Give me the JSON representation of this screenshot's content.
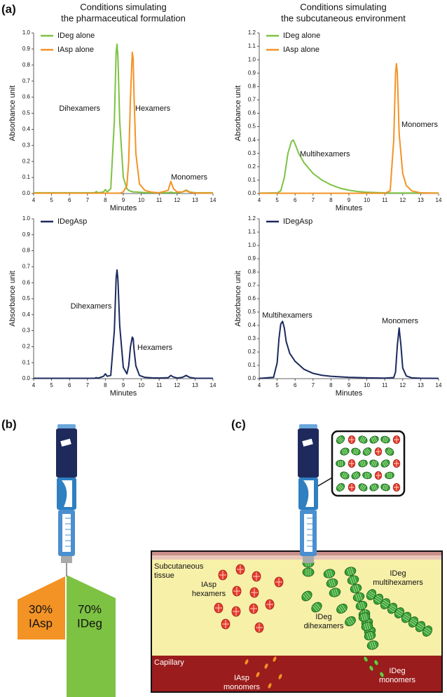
{
  "panel_labels": [
    "(a)",
    "(b)",
    "(c)"
  ],
  "column_titles": [
    [
      "Conditions simulating",
      "the pharmaceutical formulation"
    ],
    [
      "Conditions simulating",
      "the subcutaneous environment"
    ]
  ],
  "chart_data": [
    {
      "type": "line",
      "xlabel": "Minutes",
      "ylabel": "Absorbance unit",
      "x": [
        4,
        5,
        6,
        7,
        7.4,
        7.5,
        7.6,
        7.9,
        8.0,
        8.1,
        8.3,
        8.5,
        8.6,
        8.65,
        8.7,
        8.8,
        9.0,
        9.2,
        9.3,
        9.4,
        9.5,
        9.55,
        9.6,
        9.7,
        9.9,
        10.2,
        10.6,
        11.0,
        11.5,
        11.65,
        11.8,
        12.0,
        12.3,
        12.5,
        12.7,
        13,
        14
      ],
      "xlim": [
        4,
        14
      ],
      "xticks": [
        4,
        5,
        6,
        7,
        8,
        9,
        10,
        11,
        12,
        13,
        14
      ],
      "ylim": [
        0,
        1
      ],
      "yticks": [
        {
          "value": 0,
          "label": "0.0"
        },
        0.1,
        0.2,
        0.3,
        0.4,
        0.5,
        0.6,
        0.7,
        0.8,
        0.9,
        {
          "value": 1,
          "label": "1.0"
        }
      ],
      "series": [
        {
          "name": "IDeg alone",
          "color": "#7dc243",
          "values": [
            0.005,
            0.005,
            0.005,
            0.005,
            0.005,
            0.012,
            0.005,
            0.01,
            0.025,
            0.01,
            0.03,
            0.45,
            0.88,
            0.93,
            0.85,
            0.45,
            0.1,
            0.03,
            0.02,
            0.015,
            0.012,
            0.01,
            0.01,
            0.01,
            0.008,
            0.006,
            0.005,
            0.005,
            0.005,
            0.008,
            0.005,
            0.005,
            0.01,
            0.022,
            0.01,
            0.005,
            0.005
          ]
        },
        {
          "name": "IAsp alone",
          "color": "#f39325",
          "values": [
            0.002,
            0.002,
            0.002,
            0.002,
            0.002,
            0.002,
            0.002,
            0.002,
            0.002,
            0.002,
            0.002,
            0.002,
            0.002,
            0.002,
            0.002,
            0.002,
            0.01,
            0.05,
            0.2,
            0.6,
            0.88,
            0.84,
            0.6,
            0.25,
            0.06,
            0.02,
            0.008,
            0.005,
            0.02,
            0.075,
            0.03,
            0.01,
            0.01,
            0.018,
            0.008,
            0.003,
            0.002
          ]
        }
      ],
      "annotations": [
        "Dihexamers",
        "Hexamers",
        "Monomers"
      ]
    },
    {
      "type": "line",
      "xlabel": "Minutes",
      "ylabel": "Absorbance unit",
      "x": [
        4,
        5,
        5.2,
        5.4,
        5.6,
        5.8,
        5.9,
        6.0,
        6.2,
        6.5,
        7,
        7.5,
        8,
        8.5,
        9,
        9.5,
        10,
        10.5,
        11,
        11.3,
        11.5,
        11.6,
        11.65,
        11.7,
        11.8,
        12.0,
        12.2,
        12.5,
        13,
        14
      ],
      "xlim": [
        4,
        14
      ],
      "xticks": [
        4,
        5,
        6,
        7,
        8,
        9,
        10,
        11,
        12,
        13,
        14
      ],
      "ylim": [
        0,
        1.2
      ],
      "yticks": [
        {
          "value": 0,
          "label": "0.0"
        },
        0.1,
        0.2,
        0.3,
        0.4,
        0.5,
        0.6,
        0.7,
        0.8,
        0.9,
        {
          "value": 1,
          "label": "1.0"
        },
        1.1,
        1.2
      ],
      "series": [
        {
          "name": "IDeg alone",
          "color": "#7dc243",
          "values": [
            0.003,
            0.005,
            0.02,
            0.12,
            0.3,
            0.39,
            0.4,
            0.37,
            0.3,
            0.23,
            0.15,
            0.1,
            0.065,
            0.04,
            0.025,
            0.015,
            0.01,
            0.007,
            0.005,
            0.004,
            0.004,
            0.004,
            0.004,
            0.004,
            0.004,
            0.004,
            0.004,
            0.004,
            0.004,
            0.004
          ]
        },
        {
          "name": "IAsp alone",
          "color": "#f39325",
          "values": [
            0.002,
            0.002,
            0.002,
            0.002,
            0.002,
            0.002,
            0.002,
            0.002,
            0.002,
            0.002,
            0.002,
            0.002,
            0.002,
            0.002,
            0.002,
            0.002,
            0.002,
            0.002,
            0.002,
            0.02,
            0.4,
            0.9,
            0.97,
            0.9,
            0.45,
            0.15,
            0.06,
            0.02,
            0.005,
            0.002
          ]
        }
      ],
      "annotations": [
        "Multihexamers",
        "Monomers"
      ]
    },
    {
      "type": "line",
      "xlabel": "Minutes",
      "ylabel": "Absorbance unit",
      "x": [
        4,
        5,
        6,
        7,
        7.4,
        7.5,
        7.6,
        7.9,
        8.0,
        8.1,
        8.3,
        8.5,
        8.6,
        8.65,
        8.7,
        8.8,
        9.0,
        9.2,
        9.3,
        9.4,
        9.5,
        9.55,
        9.6,
        9.7,
        9.9,
        10.2,
        10.6,
        11.0,
        11.5,
        11.65,
        11.8,
        12.0,
        12.3,
        12.5,
        12.7,
        13,
        14
      ],
      "xlim": [
        4,
        14
      ],
      "xticks": [
        4,
        5,
        6,
        7,
        8,
        9,
        10,
        11,
        12,
        13,
        14
      ],
      "ylim": [
        0,
        1
      ],
      "yticks": [
        {
          "value": 0,
          "label": "0.0"
        },
        0.1,
        0.2,
        0.3,
        0.4,
        0.5,
        0.6,
        0.7,
        0.8,
        0.9,
        {
          "value": 1,
          "label": "1.0"
        }
      ],
      "series": [
        {
          "name": "IDegAsp",
          "color": "#1b2a5e",
          "values": [
            0.002,
            0.002,
            0.002,
            0.002,
            0.003,
            0.006,
            0.003,
            0.015,
            0.03,
            0.015,
            0.02,
            0.3,
            0.63,
            0.68,
            0.62,
            0.33,
            0.07,
            0.03,
            0.08,
            0.2,
            0.26,
            0.25,
            0.18,
            0.08,
            0.02,
            0.008,
            0.005,
            0.004,
            0.006,
            0.02,
            0.01,
            0.004,
            0.008,
            0.02,
            0.008,
            0.003,
            0.002
          ]
        }
      ],
      "annotations": [
        "Dihexamers",
        "Hexamers"
      ]
    },
    {
      "type": "line",
      "xlabel": "Minutes",
      "ylabel": "Absorbance unit",
      "x": [
        4,
        4.8,
        5.0,
        5.1,
        5.2,
        5.3,
        5.4,
        5.5,
        5.7,
        6,
        6.5,
        7,
        7.5,
        8,
        9,
        10,
        11,
        11.5,
        11.6,
        11.7,
        11.8,
        11.9,
        12.0,
        12.2,
        12.5,
        13,
        14
      ],
      "xlim": [
        4,
        14
      ],
      "xticks": [
        4,
        5,
        6,
        7,
        8,
        9,
        10,
        11,
        12,
        13,
        14
      ],
      "ylim": [
        0,
        1.2
      ],
      "yticks": [
        {
          "value": 0,
          "label": "0.0"
        },
        0.1,
        0.2,
        0.3,
        0.4,
        0.5,
        0.6,
        0.7,
        0.8,
        0.9,
        {
          "value": 1,
          "label": "1.0"
        },
        1.1,
        1.2
      ],
      "series": [
        {
          "name": "IDegAsp",
          "color": "#1b2a5e",
          "values": [
            0.002,
            0.01,
            0.12,
            0.3,
            0.41,
            0.43,
            0.38,
            0.28,
            0.19,
            0.13,
            0.07,
            0.04,
            0.025,
            0.018,
            0.01,
            0.006,
            0.004,
            0.008,
            0.05,
            0.25,
            0.38,
            0.25,
            0.08,
            0.02,
            0.006,
            0.003,
            0.002
          ]
        }
      ],
      "annotations": [
        "Multihexamers",
        "Monomers"
      ]
    }
  ],
  "panel_b": {
    "fractions": [
      [
        "30%",
        "IAsp"
      ],
      [
        "70%",
        "IDeg"
      ]
    ]
  },
  "panel_c": {
    "labels": [
      [
        "Subcutaneous",
        "tissue"
      ],
      [
        "IAsp",
        "hexamers"
      ],
      [
        "IDeg",
        "dihexamers"
      ],
      [
        "IDeg",
        "multihexamers"
      ],
      [
        "Capillary"
      ],
      [
        "IAsp",
        "monomers"
      ],
      [
        "IDeg",
        "monomers"
      ]
    ]
  }
}
